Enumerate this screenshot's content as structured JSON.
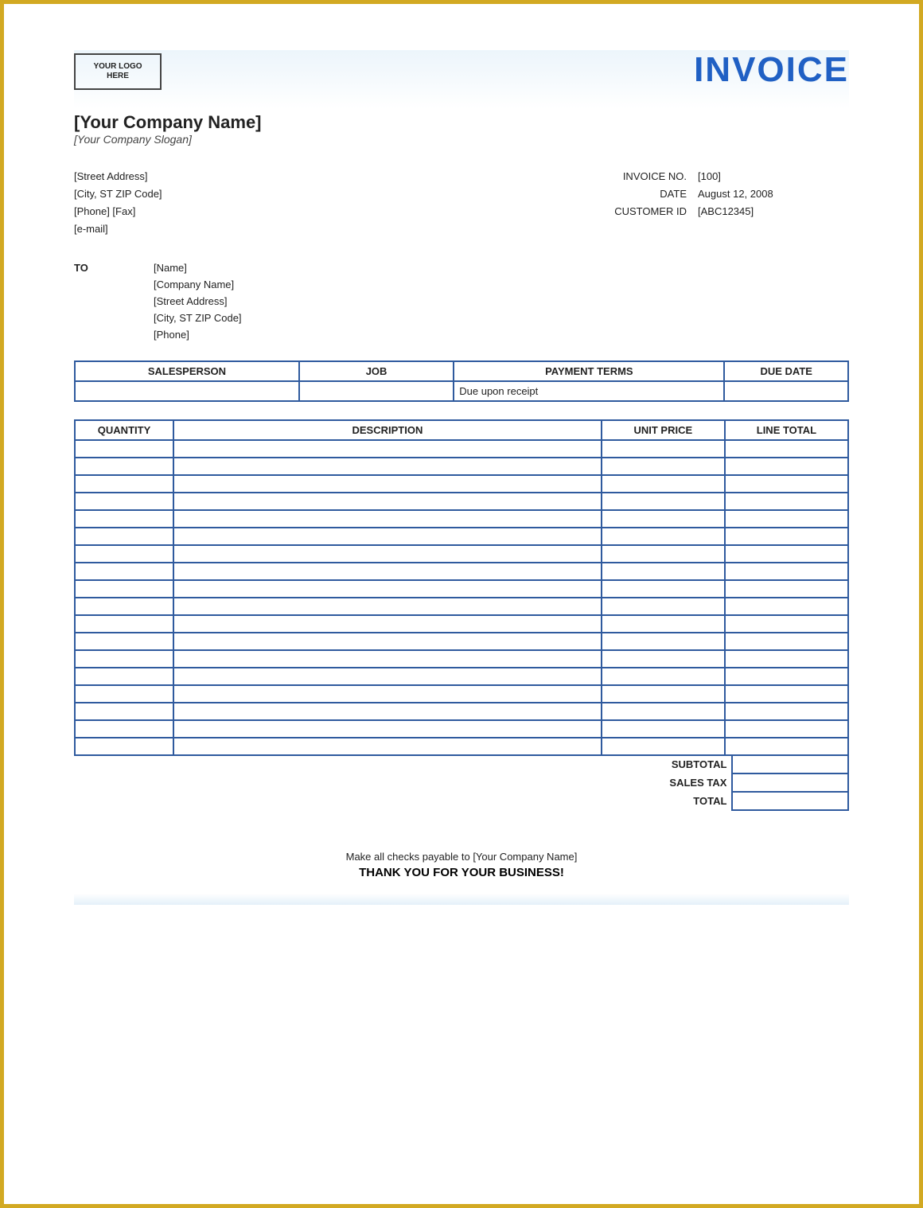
{
  "colors": {
    "frame_border": "#d2a922",
    "table_border": "#2f5a9e",
    "title_color": "#2060c4",
    "text_color": "#222222",
    "header_grad_top": "#ecf5fb",
    "header_grad_bottom": "#ffffff"
  },
  "header": {
    "logo_placeholder": "YOUR LOGO\nHERE",
    "title": "INVOICE",
    "company_name": "[Your Company Name]",
    "company_slogan": "[Your Company Slogan]"
  },
  "from": {
    "street": "[Street Address]",
    "city_line": "[City, ST ZIP Code]",
    "phone_fax": "[Phone] [Fax]",
    "email": "[e-mail]"
  },
  "meta": {
    "invoice_no_label": "INVOICE NO.",
    "invoice_no": "[100]",
    "date_label": "DATE",
    "date": "August 12, 2008",
    "customer_id_label": "CUSTOMER ID",
    "customer_id": "[ABC12345]"
  },
  "to": {
    "label": "TO",
    "name": "[Name]",
    "company": "[Company Name]",
    "street": "[Street Address]",
    "city_line": "[City, ST  ZIP Code]",
    "phone": "[Phone]"
  },
  "terms_table": {
    "headers": {
      "salesperson": "SALESPERSON",
      "job": "JOB",
      "payment_terms": "PAYMENT TERMS",
      "due_date": "DUE DATE"
    },
    "row": {
      "salesperson": "",
      "job": "",
      "payment_terms": "Due upon receipt",
      "due_date": ""
    },
    "col_widths_pct": [
      29,
      20,
      35,
      16
    ]
  },
  "items_table": {
    "headers": {
      "quantity": "QUANTITY",
      "description": "DESCRIPTION",
      "unit_price": "UNIT PRICE",
      "line_total": "LINE TOTAL"
    },
    "row_count": 18,
    "col_widths_pct": [
      12,
      52,
      15,
      15
    ]
  },
  "totals": {
    "subtotal_label": "SUBTOTAL",
    "subtotal": "",
    "sales_tax_label": "SALES TAX",
    "sales_tax": "",
    "total_label": "TOTAL",
    "total": ""
  },
  "footer": {
    "payable_line": "Make all checks payable to [Your Company Name]",
    "thanks_line": "THANK YOU FOR YOUR BUSINESS!"
  }
}
